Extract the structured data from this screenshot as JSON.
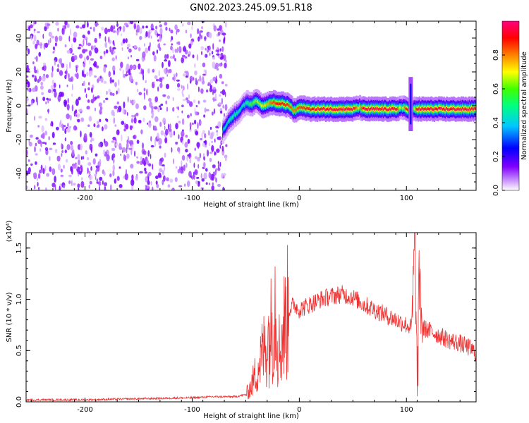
{
  "title": "GN02.2023.245.09.51.R18",
  "chart_data": [
    {
      "type": "heatmap",
      "title": "GN02.2023.245.09.51.R18",
      "xlabel": "Height of straight line (km)",
      "ylabel": "Frequency (Hz)",
      "xlim": [
        -255,
        165
      ],
      "ylim": [
        -50,
        50
      ],
      "xticks": [
        -200,
        -100,
        0,
        100
      ],
      "yticks": [
        -40,
        -20,
        0,
        20,
        40
      ],
      "colorbar": {
        "label": "Normalized spectral amplitude",
        "range": [
          0,
          1
        ],
        "ticks": [
          "0.0",
          "0.2",
          "0.4",
          "0.6",
          "0.8"
        ],
        "colormap": [
          "#ffffff",
          "#e0b0ff",
          "#8000ff",
          "#0000ff",
          "#00ffff",
          "#00ff00",
          "#ffff00",
          "#ff8000",
          "#ff0000",
          "#ff0080"
        ]
      },
      "noise_region_x": [
        -255,
        -68
      ],
      "ridge": {
        "x": [
          -72,
          -65,
          -60,
          -55,
          -50,
          -45,
          -40,
          -35,
          -30,
          -25,
          -20,
          -15,
          -10,
          -5,
          0,
          10,
          20,
          30,
          40,
          50,
          55,
          60,
          70,
          80,
          90,
          95,
          100,
          105,
          110,
          120,
          130,
          140,
          150,
          165
        ],
        "freq": [
          -15,
          -8,
          -5,
          -2,
          2,
          1,
          3,
          0,
          1,
          2,
          1,
          1,
          0,
          -3,
          -1,
          -2,
          -2,
          -2,
          -2,
          -2,
          -1,
          -2,
          -2,
          -2,
          -2,
          -1,
          -2,
          -2,
          -2,
          -2,
          -2,
          -2,
          -2,
          -2
        ],
        "amplitude": [
          0.4,
          0.5,
          0.5,
          0.45,
          0.5,
          0.6,
          0.65,
          0.7,
          0.75,
          0.85,
          0.9,
          0.9,
          0.85,
          0.8,
          0.85,
          0.9,
          0.95,
          0.95,
          0.95,
          0.95,
          0.7,
          0.95,
          0.95,
          0.95,
          0.95,
          0.6,
          0.95,
          0.5,
          0.95,
          0.95,
          0.95,
          0.95,
          0.95,
          0.95
        ]
      },
      "spike": {
        "x": 104,
        "freq_range": [
          -15,
          17
        ]
      }
    },
    {
      "type": "line",
      "xlabel": "Height of straight line (km)",
      "ylabel": "SNR (10 * v/v)",
      "multiplier": "(x10⁴)",
      "xlim": [
        -255,
        165
      ],
      "ylim": [
        0,
        1.65
      ],
      "xticks": [
        -200,
        -100,
        0,
        100
      ],
      "yticks": [
        "0.0",
        "0.5",
        "1.0",
        "1.5"
      ],
      "color": "#ee3333",
      "series": [
        {
          "x": [
            -255,
            -200,
            -150,
            -100,
            -80,
            -70,
            -60,
            -50,
            -45,
            -40,
            -35,
            -30,
            -25,
            -22,
            -20,
            -18,
            -15,
            -10,
            -5,
            0,
            10,
            20,
            30,
            40,
            50,
            60,
            70,
            80,
            90,
            100,
            105,
            108,
            110,
            112,
            115,
            120,
            130,
            140,
            150,
            160,
            165
          ],
          "y": [
            0.02,
            0.02,
            0.03,
            0.04,
            0.05,
            0.05,
            0.05,
            0.07,
            0.15,
            0.3,
            0.45,
            0.6,
            0.75,
            1.05,
            0.55,
            0.5,
            0.7,
            0.9,
            0.95,
            0.9,
            0.95,
            1.0,
            1.03,
            1.05,
            1.02,
            0.95,
            0.9,
            0.85,
            0.8,
            0.75,
            0.72,
            1.6,
            0.1,
            1.2,
            0.72,
            0.7,
            0.65,
            0.6,
            0.57,
            0.52,
            0.47
          ]
        }
      ]
    }
  ]
}
